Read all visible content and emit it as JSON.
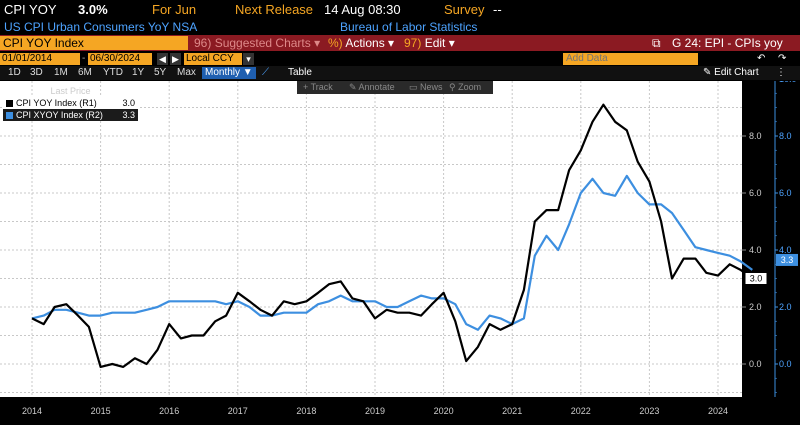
{
  "header": {
    "ticker": "CPI YOY",
    "value": "3.0%",
    "period": "For Jun",
    "next_release": "Next Release",
    "release_time": "14 Aug 08:30",
    "survey_label": "Survey",
    "survey_value": "--",
    "description": "US CPI Urban Consumers YoY NSA",
    "source": "Bureau of Labor Statistics"
  },
  "toolbar": {
    "security": "CPI YOY Index",
    "suggested_num": "96)",
    "suggested": "Suggested Charts",
    "actions_num": "%)",
    "actions": "Actions",
    "edit_num": "97)",
    "edit": "Edit",
    "chart_title": "G 24: EPI - CPIs yoy"
  },
  "dates": {
    "start": "01/01/2014",
    "end": "06/30/2024",
    "currency": "Local CCY",
    "add_data": "Add Data",
    "edit_chart": "Edit Chart"
  },
  "periods": [
    "1D",
    "3D",
    "1M",
    "6M",
    "YTD",
    "1Y",
    "5Y",
    "Max"
  ],
  "frequency": "Monthly",
  "table_label": "Table",
  "chart_tools": [
    "Track",
    "Annotate",
    "News",
    "Zoom"
  ],
  "legend": {
    "title": "Last Price",
    "items": [
      {
        "label": "CPI YOY Index  (R1)",
        "value": "3.0",
        "color": "#000000"
      },
      {
        "label": "CPI XYOY Index  (R2)",
        "value": "3.3",
        "color": "#3d8fe0"
      }
    ]
  },
  "colors": {
    "cpi": "#000000",
    "core": "#3d8fe0",
    "header_orange": "#f5a623",
    "toolbar_red": "#8b1a22"
  },
  "icons": {
    "launch": "launch-icon",
    "wrench": "wrench-icon",
    "undo": "undo-icon",
    "redo": "redo-icon",
    "chart": "line-chart-icon"
  },
  "chart_data": {
    "type": "line",
    "title": "",
    "xlabel": "",
    "x_ticks": [
      "2014",
      "2015",
      "2016",
      "2017",
      "2018",
      "2019",
      "2020",
      "2021",
      "2022",
      "2023",
      "2024"
    ],
    "y_left": {
      "ticks": [
        "0.0",
        "2.0",
        "4.0",
        "6.0",
        "8.0"
      ],
      "range": [
        -1.0,
        10.0
      ]
    },
    "y_right": {
      "ticks": [
        "0.0",
        "2.0",
        "4.0",
        "6.0",
        "8.0",
        "10.0"
      ],
      "range": [
        -1.0,
        10.0
      ]
    },
    "x_range": [
      2013.8,
      2024.5
    ],
    "last_values": {
      "cpi": "3.0",
      "core": "3.3"
    },
    "series": [
      {
        "name": "CPI YOY Index",
        "axis": "R1",
        "points": [
          [
            2014.0,
            1.6
          ],
          [
            2014.17,
            1.4
          ],
          [
            2014.33,
            2.0
          ],
          [
            2014.5,
            2.1
          ],
          [
            2014.67,
            1.7
          ],
          [
            2014.83,
            1.3
          ],
          [
            2015.0,
            -0.1
          ],
          [
            2015.17,
            0.0
          ],
          [
            2015.33,
            -0.1
          ],
          [
            2015.5,
            0.2
          ],
          [
            2015.67,
            0.0
          ],
          [
            2015.83,
            0.5
          ],
          [
            2016.0,
            1.4
          ],
          [
            2016.17,
            0.9
          ],
          [
            2016.33,
            1.0
          ],
          [
            2016.5,
            1.0
          ],
          [
            2016.67,
            1.5
          ],
          [
            2016.83,
            1.7
          ],
          [
            2017.0,
            2.5
          ],
          [
            2017.17,
            2.2
          ],
          [
            2017.33,
            1.9
          ],
          [
            2017.5,
            1.7
          ],
          [
            2017.67,
            2.2
          ],
          [
            2017.83,
            2.1
          ],
          [
            2018.0,
            2.2
          ],
          [
            2018.17,
            2.5
          ],
          [
            2018.33,
            2.8
          ],
          [
            2018.5,
            2.9
          ],
          [
            2018.67,
            2.3
          ],
          [
            2018.83,
            2.2
          ],
          [
            2019.0,
            1.6
          ],
          [
            2019.17,
            1.9
          ],
          [
            2019.33,
            1.8
          ],
          [
            2019.5,
            1.8
          ],
          [
            2019.67,
            1.7
          ],
          [
            2019.83,
            2.1
          ],
          [
            2020.0,
            2.5
          ],
          [
            2020.17,
            1.5
          ],
          [
            2020.33,
            0.1
          ],
          [
            2020.5,
            0.6
          ],
          [
            2020.67,
            1.4
          ],
          [
            2020.83,
            1.2
          ],
          [
            2021.0,
            1.4
          ],
          [
            2021.17,
            2.6
          ],
          [
            2021.33,
            5.0
          ],
          [
            2021.5,
            5.4
          ],
          [
            2021.67,
            5.4
          ],
          [
            2021.83,
            6.8
          ],
          [
            2022.0,
            7.5
          ],
          [
            2022.17,
            8.5
          ],
          [
            2022.33,
            9.1
          ],
          [
            2022.5,
            8.5
          ],
          [
            2022.67,
            8.2
          ],
          [
            2022.83,
            7.1
          ],
          [
            2023.0,
            6.4
          ],
          [
            2023.17,
            5.0
          ],
          [
            2023.33,
            3.0
          ],
          [
            2023.5,
            3.7
          ],
          [
            2023.67,
            3.7
          ],
          [
            2023.83,
            3.2
          ],
          [
            2024.0,
            3.1
          ],
          [
            2024.17,
            3.5
          ],
          [
            2024.33,
            3.3
          ],
          [
            2024.5,
            3.0
          ]
        ]
      },
      {
        "name": "CPI XYOY Index",
        "axis": "R2",
        "points": [
          [
            2014.0,
            1.6
          ],
          [
            2014.17,
            1.7
          ],
          [
            2014.33,
            1.9
          ],
          [
            2014.5,
            1.9
          ],
          [
            2014.67,
            1.8
          ],
          [
            2014.83,
            1.7
          ],
          [
            2015.0,
            1.7
          ],
          [
            2015.17,
            1.8
          ],
          [
            2015.33,
            1.8
          ],
          [
            2015.5,
            1.8
          ],
          [
            2015.67,
            1.9
          ],
          [
            2015.83,
            2.0
          ],
          [
            2016.0,
            2.2
          ],
          [
            2016.17,
            2.2
          ],
          [
            2016.33,
            2.2
          ],
          [
            2016.5,
            2.2
          ],
          [
            2016.67,
            2.2
          ],
          [
            2016.83,
            2.1
          ],
          [
            2017.0,
            2.2
          ],
          [
            2017.17,
            2.0
          ],
          [
            2017.33,
            1.7
          ],
          [
            2017.5,
            1.7
          ],
          [
            2017.67,
            1.8
          ],
          [
            2017.83,
            1.8
          ],
          [
            2018.0,
            1.8
          ],
          [
            2018.17,
            2.1
          ],
          [
            2018.33,
            2.2
          ],
          [
            2018.5,
            2.4
          ],
          [
            2018.67,
            2.2
          ],
          [
            2018.83,
            2.2
          ],
          [
            2019.0,
            2.2
          ],
          [
            2019.17,
            2.0
          ],
          [
            2019.33,
            2.0
          ],
          [
            2019.5,
            2.2
          ],
          [
            2019.67,
            2.4
          ],
          [
            2019.83,
            2.3
          ],
          [
            2020.0,
            2.3
          ],
          [
            2020.17,
            2.1
          ],
          [
            2020.33,
            1.4
          ],
          [
            2020.5,
            1.2
          ],
          [
            2020.67,
            1.7
          ],
          [
            2020.83,
            1.6
          ],
          [
            2021.0,
            1.4
          ],
          [
            2021.17,
            1.6
          ],
          [
            2021.33,
            3.8
          ],
          [
            2021.5,
            4.5
          ],
          [
            2021.67,
            4.0
          ],
          [
            2021.83,
            4.9
          ],
          [
            2022.0,
            6.0
          ],
          [
            2022.17,
            6.5
          ],
          [
            2022.33,
            6.0
          ],
          [
            2022.5,
            5.9
          ],
          [
            2022.67,
            6.6
          ],
          [
            2022.83,
            6.0
          ],
          [
            2023.0,
            5.6
          ],
          [
            2023.17,
            5.6
          ],
          [
            2023.33,
            5.3
          ],
          [
            2023.5,
            4.7
          ],
          [
            2023.67,
            4.1
          ],
          [
            2023.83,
            4.0
          ],
          [
            2024.0,
            3.9
          ],
          [
            2024.17,
            3.8
          ],
          [
            2024.33,
            3.6
          ],
          [
            2024.5,
            3.3
          ]
        ]
      }
    ]
  }
}
